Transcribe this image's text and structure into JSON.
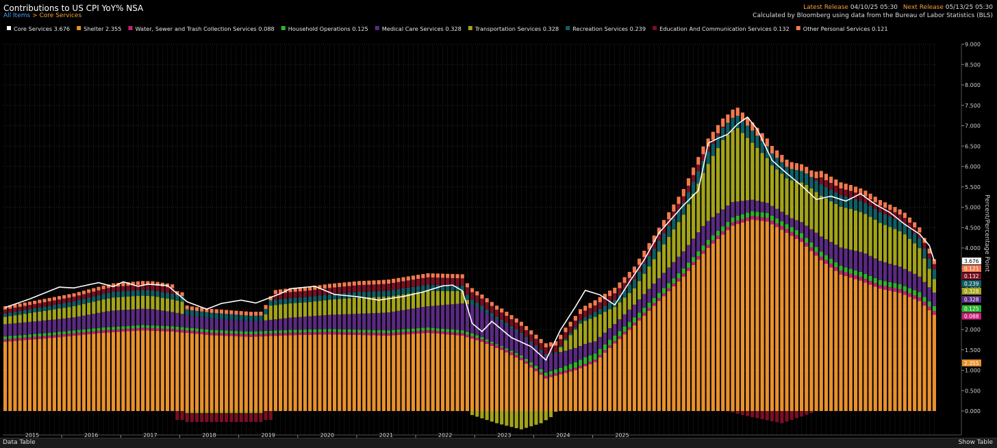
{
  "header": {
    "title": "Contributions to US CPI YoY% NSA",
    "crumb_root": "All Items",
    "crumb_sep": ">",
    "crumb_current": "Core Services",
    "latest_release_label": "Latest Release",
    "latest_release_value": "04/10/25 05:30",
    "next_release_label": "Next Release",
    "next_release_value": "05/13/25 05:30",
    "source": "Calculated by Bloomberg using data from the Bureau of Labor Statistics (BLS)"
  },
  "footer": {
    "data_table": "Data Table",
    "show_table": "Show Table"
  },
  "chart_data": {
    "type": "bar",
    "stacked": true,
    "ylabel": "Percent/Percentage Point",
    "ylim": [
      -0.45,
      9.1
    ],
    "ytick_values": [
      0,
      0.5,
      1,
      1.5,
      2,
      2.5,
      3,
      3.5,
      4,
      4.5,
      5,
      5.5,
      6,
      6.5,
      7,
      7.5,
      8,
      8.5,
      9
    ],
    "ytick_labels": [
      "0.000",
      "0.500",
      "1.000",
      "1.500",
      "2.000",
      "2.500",
      "3.000",
      "3.500",
      "4.000",
      "4.500",
      "5.000",
      "5.500",
      "6.000",
      "6.500",
      "7.000",
      "7.500",
      "8.000",
      "8.500",
      "9.000"
    ],
    "x_years": [
      "2015",
      "2016",
      "2017",
      "2018",
      "2019",
      "2020",
      "2021",
      "2022",
      "2023",
      "2024",
      "2025"
    ],
    "x_start": "2015-01",
    "grid": true,
    "legend_position": "top",
    "total": {
      "name": "Core Services",
      "value_label": "3.676",
      "color": "#ffffff",
      "anchors": [
        [
          0,
          2.54
        ],
        [
          5,
          2.75
        ],
        [
          11,
          3.04
        ],
        [
          14,
          3.02
        ],
        [
          19,
          3.15
        ],
        [
          22,
          3.05
        ],
        [
          24,
          3.17
        ],
        [
          27,
          3.06
        ],
        [
          29,
          3.11
        ],
        [
          33,
          3.08
        ],
        [
          37,
          2.68
        ],
        [
          41,
          2.5
        ],
        [
          44,
          2.64
        ],
        [
          48,
          2.72
        ],
        [
          51,
          2.65
        ],
        [
          56,
          2.88
        ],
        [
          58,
          3.0
        ],
        [
          63,
          3.06
        ],
        [
          67,
          2.86
        ],
        [
          72,
          2.8
        ],
        [
          76,
          2.72
        ],
        [
          81,
          2.81
        ],
        [
          85,
          2.92
        ],
        [
          89,
          3.07
        ],
        [
          91,
          3.09
        ],
        [
          93,
          2.95
        ],
        [
          95,
          2.15
        ],
        [
          97,
          1.95
        ],
        [
          99,
          2.2
        ],
        [
          103,
          1.8
        ],
        [
          107,
          1.58
        ],
        [
          110,
          1.25
        ],
        [
          113,
          2.0
        ],
        [
          116,
          2.56
        ],
        [
          118,
          2.96
        ],
        [
          121,
          2.85
        ],
        [
          124,
          2.6
        ],
        [
          127,
          3.17
        ],
        [
          130,
          3.71
        ],
        [
          133,
          4.37
        ],
        [
          138,
          5.05
        ],
        [
          141,
          5.41
        ],
        [
          143,
          6.57
        ],
        [
          145,
          6.69
        ],
        [
          147,
          6.79
        ],
        [
          149,
          7.04
        ],
        [
          151,
          7.21
        ],
        [
          153,
          6.91
        ],
        [
          156,
          6.15
        ],
        [
          159,
          5.83
        ],
        [
          162,
          5.53
        ],
        [
          165,
          5.19
        ],
        [
          168,
          5.27
        ],
        [
          171,
          5.15
        ],
        [
          174,
          5.33
        ],
        [
          177,
          5.07
        ],
        [
          180,
          4.87
        ],
        [
          183,
          4.58
        ],
        [
          186,
          4.34
        ],
        [
          188,
          4.06
        ],
        [
          189,
          3.68
        ]
      ]
    },
    "series": [
      {
        "name": "Shelter",
        "value_label": "2.355",
        "color": "#e8912d",
        "anchors": [
          [
            0,
            1.7
          ],
          [
            10,
            1.8
          ],
          [
            20,
            1.92
          ],
          [
            28,
            1.98
          ],
          [
            34,
            1.95
          ],
          [
            42,
            1.86
          ],
          [
            50,
            1.82
          ],
          [
            58,
            1.86
          ],
          [
            66,
            1.88
          ],
          [
            78,
            1.85
          ],
          [
            86,
            1.92
          ],
          [
            93,
            1.85
          ],
          [
            97,
            1.7
          ],
          [
            101,
            1.5
          ],
          [
            105,
            1.25
          ],
          [
            110,
            0.8
          ],
          [
            113,
            0.9
          ],
          [
            116,
            1.0
          ],
          [
            120,
            1.2
          ],
          [
            123,
            1.55
          ],
          [
            128,
            2.1
          ],
          [
            133,
            2.7
          ],
          [
            138,
            3.3
          ],
          [
            143,
            4.0
          ],
          [
            148,
            4.55
          ],
          [
            152,
            4.7
          ],
          [
            155,
            4.65
          ],
          [
            158,
            4.45
          ],
          [
            162,
            4.15
          ],
          [
            166,
            3.7
          ],
          [
            170,
            3.35
          ],
          [
            174,
            3.2
          ],
          [
            178,
            3.0
          ],
          [
            182,
            2.9
          ],
          [
            186,
            2.7
          ],
          [
            189,
            2.36
          ]
        ]
      },
      {
        "name": "Water, Sewer and Trash Collection Services",
        "value_label": "0.088",
        "color": "#c71f7a",
        "anchors": [
          [
            0,
            0.06
          ],
          [
            120,
            0.06
          ],
          [
            160,
            0.09
          ],
          [
            189,
            0.09
          ]
        ]
      },
      {
        "name": "Household Operations",
        "value_label": "0.125",
        "color": "#2bb52b",
        "anchors": [
          [
            0,
            0.07
          ],
          [
            95,
            0.07
          ],
          [
            100,
            0.03
          ],
          [
            112,
            0.09
          ],
          [
            118,
            0.16
          ],
          [
            124,
            0.13
          ],
          [
            150,
            0.12
          ],
          [
            189,
            0.125
          ]
        ]
      },
      {
        "name": "Medical Care Services",
        "value_label": "0.328",
        "color": "#5a2a82",
        "anchors": [
          [
            0,
            0.3
          ],
          [
            14,
            0.32
          ],
          [
            22,
            0.4
          ],
          [
            30,
            0.4
          ],
          [
            38,
            0.3
          ],
          [
            52,
            0.25
          ],
          [
            58,
            0.3
          ],
          [
            66,
            0.35
          ],
          [
            76,
            0.42
          ],
          [
            86,
            0.52
          ],
          [
            91,
            0.62
          ],
          [
            95,
            0.7
          ],
          [
            100,
            0.6
          ],
          [
            105,
            0.5
          ],
          [
            110,
            0.42
          ],
          [
            116,
            0.35
          ],
          [
            120,
            0.3
          ],
          [
            124,
            0.28
          ],
          [
            132,
            0.35
          ],
          [
            138,
            0.42
          ],
          [
            142,
            0.48
          ],
          [
            147,
            0.4
          ],
          [
            152,
            0.28
          ],
          [
            156,
            0.24
          ],
          [
            160,
            0.22
          ],
          [
            165,
            0.35
          ],
          [
            170,
            0.45
          ],
          [
            175,
            0.5
          ],
          [
            180,
            0.45
          ],
          [
            185,
            0.4
          ],
          [
            189,
            0.33
          ]
        ]
      },
      {
        "name": "Transportation Services",
        "value_label": "0.328",
        "color": "#a3a31a",
        "anchors": [
          [
            0,
            0.18
          ],
          [
            10,
            0.25
          ],
          [
            22,
            0.32
          ],
          [
            30,
            0.32
          ],
          [
            36,
            0.3
          ],
          [
            37,
            -0.05
          ],
          [
            40,
            -0.05
          ],
          [
            52,
            -0.05
          ],
          [
            54,
            0.35
          ],
          [
            62,
            0.35
          ],
          [
            72,
            0.4
          ],
          [
            86,
            0.38
          ],
          [
            93,
            0.3
          ],
          [
            95,
            -0.1
          ],
          [
            100,
            -0.3
          ],
          [
            105,
            -0.45
          ],
          [
            109,
            -0.3
          ],
          [
            111,
            -0.15
          ],
          [
            114,
            0.25
          ],
          [
            117,
            0.55
          ],
          [
            120,
            0.6
          ],
          [
            124,
            0.42
          ],
          [
            128,
            0.4
          ],
          [
            132,
            0.6
          ],
          [
            138,
            0.9
          ],
          [
            142,
            1.3
          ],
          [
            146,
            1.7
          ],
          [
            149,
            1.8
          ],
          [
            152,
            1.4
          ],
          [
            156,
            1.0
          ],
          [
            159,
            0.9
          ],
          [
            163,
            1.0
          ],
          [
            167,
            1.0
          ],
          [
            172,
            1.0
          ],
          [
            177,
            0.95
          ],
          [
            183,
            0.85
          ],
          [
            186,
            0.7
          ],
          [
            189,
            0.33
          ]
        ]
      },
      {
        "name": "Recreation Services",
        "value_label": "0.239",
        "color": "#0f5e66",
        "anchors": [
          [
            0,
            0.08
          ],
          [
            10,
            0.11
          ],
          [
            22,
            0.14
          ],
          [
            33,
            0.14
          ],
          [
            50,
            0.13
          ],
          [
            66,
            0.13
          ],
          [
            86,
            0.15
          ],
          [
            95,
            0.13
          ],
          [
            100,
            0.07
          ],
          [
            106,
            0.05
          ],
          [
            112,
            0.03
          ],
          [
            116,
            0.06
          ],
          [
            122,
            0.15
          ],
          [
            130,
            0.25
          ],
          [
            140,
            0.3
          ],
          [
            150,
            0.3
          ],
          [
            160,
            0.28
          ],
          [
            170,
            0.28
          ],
          [
            180,
            0.26
          ],
          [
            189,
            0.24
          ]
        ]
      },
      {
        "name": "Education And Communication Services",
        "value_label": "0.132",
        "color": "#7a0f24",
        "anchors": [
          [
            0,
            0.1
          ],
          [
            22,
            0.12
          ],
          [
            33,
            0.14
          ],
          [
            34,
            0.14
          ],
          [
            35,
            -0.22
          ],
          [
            54,
            -0.22
          ],
          [
            55,
            0.14
          ],
          [
            66,
            0.16
          ],
          [
            86,
            0.18
          ],
          [
            95,
            0.18
          ],
          [
            106,
            0.17
          ],
          [
            114,
            0.16
          ],
          [
            125,
            0.16
          ],
          [
            142,
            0.16
          ],
          [
            150,
            -0.1
          ],
          [
            158,
            -0.3
          ],
          [
            164,
            -0.05
          ],
          [
            166,
            0.17
          ],
          [
            180,
            0.16
          ],
          [
            189,
            0.13
          ]
        ]
      },
      {
        "name": "Other Personal Services",
        "value_label": "0.121",
        "color": "#f27a4e",
        "anchors": [
          [
            0,
            0.08
          ],
          [
            30,
            0.09
          ],
          [
            60,
            0.1
          ],
          [
            95,
            0.1
          ],
          [
            110,
            0.1
          ],
          [
            125,
            0.14
          ],
          [
            135,
            0.17
          ],
          [
            145,
            0.2
          ],
          [
            152,
            0.2
          ],
          [
            160,
            0.17
          ],
          [
            170,
            0.15
          ],
          [
            180,
            0.13
          ],
          [
            189,
            0.12
          ]
        ]
      }
    ]
  }
}
